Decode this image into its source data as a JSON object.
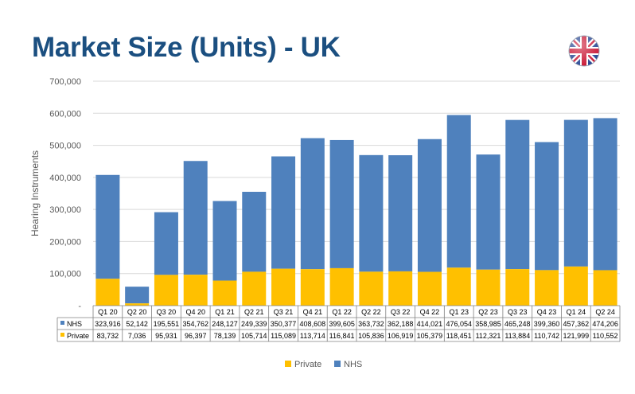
{
  "title": "Market Size (Units) - UK",
  "flag_icon": "uk-flag-icon",
  "chart_data": {
    "type": "bar",
    "stacked": true,
    "ylabel": "Hearing Instruments",
    "ylim": [
      0,
      700000
    ],
    "yticks": [
      "-",
      "100,000",
      "200,000",
      "300,000",
      "400,000",
      "500,000",
      "600,000",
      "700,000"
    ],
    "grid": true,
    "legend_position": "bottom",
    "categories": [
      "Q1 20",
      "Q2 20",
      "Q3 20",
      "Q4 20",
      "Q1 21",
      "Q2 21",
      "Q3 21",
      "Q4 21",
      "Q1 22",
      "Q2 22",
      "Q3 22",
      "Q4 22",
      "Q1 23",
      "Q2 23",
      "Q3 23",
      "Q4 23",
      "Q1 24",
      "Q2 24"
    ],
    "series": [
      {
        "name": "Private",
        "color": "#ffc000",
        "values": [
          83732,
          7036,
          95931,
          96397,
          78139,
          105714,
          115089,
          113714,
          116841,
          105836,
          106919,
          105379,
          118451,
          112321,
          113884,
          110742,
          121999,
          110552
        ],
        "labels": [
          "83,732",
          "7,036",
          "95,931",
          "96,397",
          "78,139",
          "105,714",
          "115,089",
          "113,714",
          "116,841",
          "105,836",
          "106,919",
          "105,379",
          "118,451",
          "112,321",
          "113,884",
          "110,742",
          "121,999",
          "110,552"
        ]
      },
      {
        "name": "NHS",
        "color": "#4f81bd",
        "values": [
          323916,
          52142,
          195551,
          354762,
          248127,
          249339,
          350377,
          408608,
          399605,
          363732,
          362188,
          414021,
          476054,
          358985,
          465248,
          399360,
          457362,
          474206
        ],
        "labels": [
          "323,916",
          "52,142",
          "195,551",
          "354,762",
          "248,127",
          "249,339",
          "350,377",
          "408,608",
          "399,605",
          "363,732",
          "362,188",
          "414,021",
          "476,054",
          "358,985",
          "465,248",
          "399,360",
          "457,362",
          "474,206"
        ]
      }
    ],
    "table_rows": [
      "NHS",
      "Private"
    ]
  }
}
